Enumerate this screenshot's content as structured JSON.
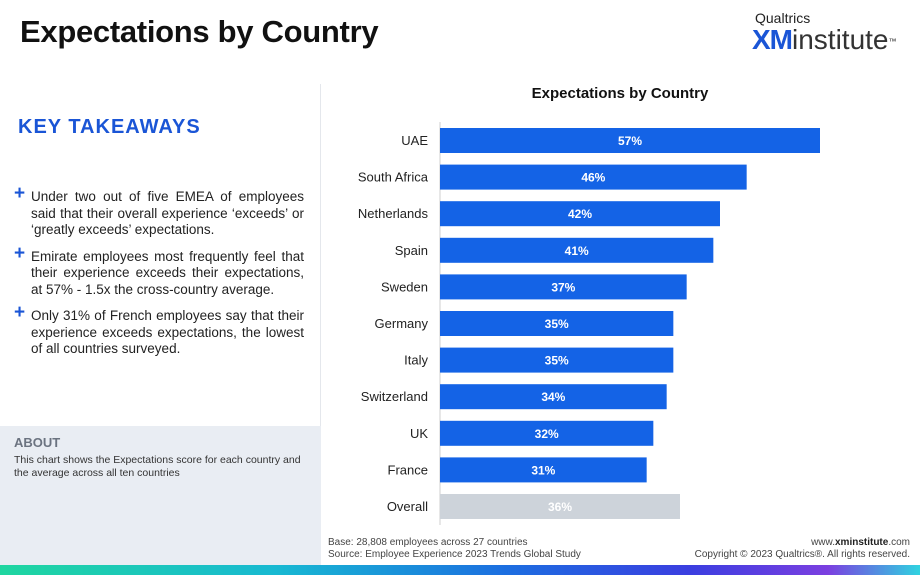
{
  "page": {
    "title": "Expectations by Country"
  },
  "brand": {
    "top": "Qualtrics",
    "xm": "XM",
    "institute": "institute",
    "tm": "™"
  },
  "takeaways": {
    "title": "KEY TAKEAWAYS",
    "bullet": "+",
    "items": [
      "Under two out of five EMEA of employees said that their overall experience ‘exceeds’ or ‘greatly exceeds’ expectations.",
      "Emirate employees most frequently feel that their experience exceeds their expectations, at 57% - 1.5x the cross-country average.",
      "Only 31% of French employees say that their experience exceeds expectations, the lowest of all countries surveyed."
    ]
  },
  "about": {
    "title": "ABOUT",
    "text": "This chart shows the Expectations score for each country and the average across all ten countries"
  },
  "chart_data": {
    "type": "bar",
    "orientation": "horizontal",
    "title": "Expectations by Country",
    "categories": [
      "UAE",
      "South Africa",
      "Netherlands",
      "Spain",
      "Sweden",
      "Germany",
      "Italy",
      "Switzerland",
      "UK",
      "France",
      "Overall"
    ],
    "values": [
      57,
      46,
      42,
      41,
      37,
      35,
      35,
      34,
      32,
      31,
      36
    ],
    "labels": [
      "57%",
      "46%",
      "42%",
      "41%",
      "37%",
      "35%",
      "35%",
      "34%",
      "32%",
      "31%",
      "36%"
    ],
    "highlight_last": true,
    "xlim": [
      0,
      60
    ],
    "xlabel": "",
    "ylabel": "",
    "grid": false,
    "colors": {
      "bar": "#1463e6",
      "overall_bar": "#cdd3da",
      "bar_label": "#ffffff",
      "category_label": "#222222",
      "axis": "#cfcfcf"
    }
  },
  "footer": {
    "base": "Base: 28,808 employees across 27 countries",
    "source": "Source: Employee Experience 2023 Trends Global Study",
    "url_prefix": "www.",
    "url_bold": "xminstitute",
    "url_suffix": ".com",
    "copyright": "Copyright © 2023 Qualtrics®. All rights reserved."
  }
}
